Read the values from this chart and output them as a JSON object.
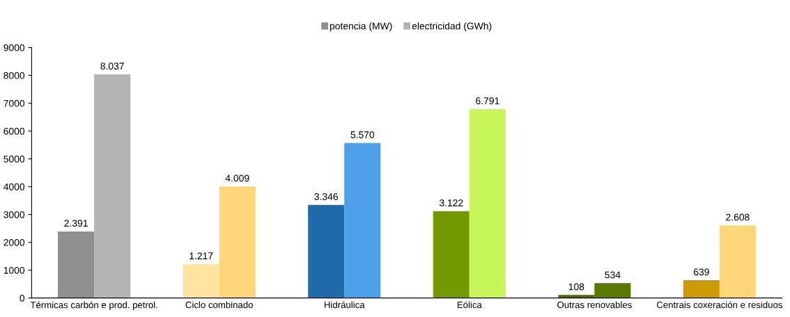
{
  "chart_data": {
    "type": "bar",
    "categories": [
      "Térmicas carbón e prod. petrol.",
      "Ciclo combinado",
      "Hidráulica",
      "Eólica",
      "Outras renovables",
      "Centrais coxeración e residuos"
    ],
    "series": [
      {
        "name": "potencia (MW)",
        "color": "#8f8f8f",
        "colors": [
          "#8f8f8f",
          "#ffe3a0",
          "#1f6aa8",
          "#739b00",
          "#4d6b00",
          "#cc9a00"
        ],
        "values": [
          2391,
          1217,
          3346,
          3122,
          108,
          639
        ],
        "value_labels": [
          "2.391",
          "1.217",
          "3.346",
          "3.122",
          "108",
          "639"
        ]
      },
      {
        "name": "electricidad (GWh)",
        "color": "#b3b3b3",
        "colors": [
          "#b3b3b3",
          "#ffd678",
          "#4da0e8",
          "#c8f55a",
          "#5a7a00",
          "#ffd678"
        ],
        "values": [
          8037,
          4009,
          5570,
          6791,
          534,
          2608
        ],
        "value_labels": [
          "8.037",
          "4.009",
          "5.570",
          "6.791",
          "534",
          "2.608"
        ]
      }
    ],
    "ylim": [
      0,
      9000
    ],
    "yticks": [
      0,
      1000,
      2000,
      3000,
      4000,
      5000,
      6000,
      7000,
      8000,
      9000
    ],
    "grid": false,
    "legend": "top"
  }
}
